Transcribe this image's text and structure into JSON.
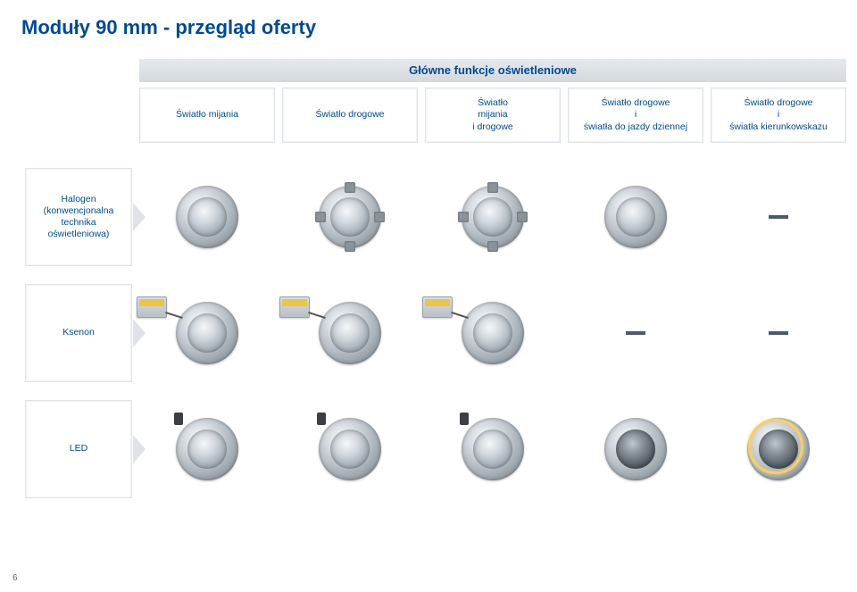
{
  "page_number": "6",
  "title": "Moduły 90 mm - przegląd oferty",
  "colors": {
    "accent": "#004a8f",
    "dash": "#4a5a6a",
    "header_bg_top": "#e6e9ec",
    "header_bg_bottom": "#d4d9de",
    "halo": "#f4cf6c"
  },
  "table": {
    "main_header": "Główne funkcje oświetleniowe",
    "columns": [
      "Światło mijania",
      "Światło drogowe",
      "Światło\nmijania\ni drogowe",
      "Światło drogowe\ni\nświatła do jazdy dziennej",
      "Światło drogowe\ni\nświatła kierunkowskazu"
    ],
    "rows": [
      {
        "label": "Halogen\n(konwencjonalna\ntechnika\noświetleniowa)",
        "cells": [
          "lamp-round",
          "lamp-round-tabs",
          "lamp-round-tabs",
          "lamp-round",
          "dash"
        ]
      },
      {
        "label": "Ksenon",
        "cells": [
          "lamp-ballast",
          "lamp-ballast",
          "lamp-ballast",
          "dash",
          "dash"
        ]
      },
      {
        "label": "LED",
        "cells": [
          "lamp-round-plug",
          "lamp-round-plug",
          "lamp-round-plug",
          "lamp-round-dark",
          "lamp-halo"
        ]
      }
    ]
  }
}
